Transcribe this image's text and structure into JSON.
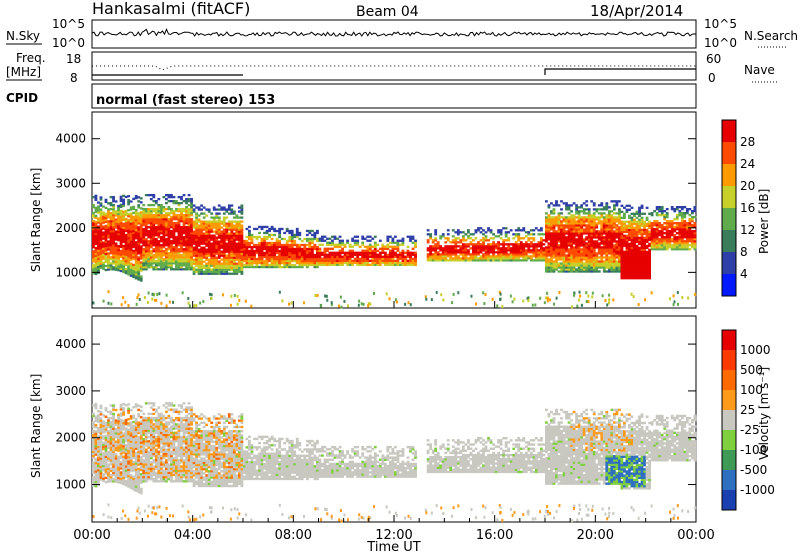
{
  "header": {
    "station": "Hankasalmi (fitACF)",
    "beam": "Beam 04",
    "date": "18/Apr/2014"
  },
  "status_rows": {
    "nsky_label": "N.Sky",
    "nsearch_label": "N.Search",
    "count_ticks": [
      "10^5",
      "10^0"
    ],
    "freq_label": "Freq.",
    "freq_unit": "[MHz]",
    "freq_ticks": [
      "18",
      "8"
    ],
    "nave_label": "Nave",
    "nave_ticks": [
      "60",
      "0"
    ],
    "cpid_label": "CPID",
    "cpid_text": "normal (fast stereo) 153"
  },
  "chart_data": [
    {
      "type": "heatmap",
      "title": "",
      "ylabel": "Slant Range [km]",
      "xlabel": "",
      "ylim": [
        200,
        4600
      ],
      "yticks": [
        1000,
        2000,
        3000,
        4000
      ],
      "xlim_hours": [
        0,
        24
      ],
      "colorbar": {
        "label": "Power [dB]",
        "ticks": [
          "4",
          "8",
          "12",
          "16",
          "20",
          "24",
          "28"
        ],
        "colors": [
          "#0019ff",
          "#2f3fa8",
          "#3a7d5a",
          "#5faa4a",
          "#c7cf2a",
          "#ff9a00",
          "#ff4a00",
          "#e60000"
        ]
      },
      "features": [
        {
          "t_start": 0.0,
          "t_end": 6.0,
          "range_low": 900,
          "range_high": 2700,
          "level": "strong"
        },
        {
          "t_start": 6.0,
          "t_end": 12.9,
          "range_low": 1150,
          "range_high": 1900,
          "level": "strong"
        },
        {
          "t_start": 13.3,
          "t_end": 18.0,
          "range_low": 1200,
          "range_high": 1950,
          "level": "strong"
        },
        {
          "t_start": 18.0,
          "t_end": 24.0,
          "range_low": 1000,
          "range_high": 2700,
          "level": "strong"
        }
      ]
    },
    {
      "type": "heatmap",
      "title": "",
      "ylabel": "Slant Range [km]",
      "xlabel": "Time UT",
      "ylim": [
        200,
        4600
      ],
      "yticks": [
        1000,
        2000,
        3000,
        4000
      ],
      "xlim_hours": [
        0,
        24
      ],
      "colorbar": {
        "label": "Velocity [m s⁻¹]",
        "ticks": [
          "1000",
          "500",
          "100",
          "25",
          "-25",
          "-100",
          "-500",
          "-1000"
        ],
        "colors": [
          "#1a3fb0",
          "#2f6fc0",
          "#3f9a55",
          "#7fcf3f",
          "#c8c8c0",
          "#ff9a1a",
          "#ff6a00",
          "#ff3a00",
          "#e60000"
        ]
      }
    }
  ],
  "x_axis": {
    "tick_labels": [
      "00:00",
      "04:00",
      "08:00",
      "12:00",
      "16:00",
      "20:00",
      "00:00"
    ],
    "tick_hours": [
      0,
      4,
      8,
      12,
      16,
      20,
      24
    ],
    "label": "Time UT"
  }
}
